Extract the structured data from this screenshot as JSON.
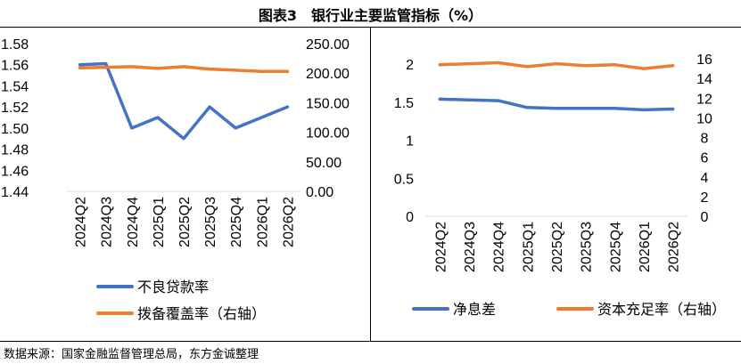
{
  "figure": {
    "title": "图表3　银行业主要监管指标（%）",
    "source": "数据来源：国家金融监督管理总局，东方金诚整理"
  },
  "colors": {
    "blue": "#4472C4",
    "orange": "#ED7D31",
    "axis": "#d9d9d9"
  },
  "chart_data": [
    {
      "type": "line",
      "categories": [
        "2024Q2",
        "2024Q3",
        "2024Q4",
        "2025Q1",
        "2025Q2",
        "2025Q3",
        "2025Q4",
        "2026Q1",
        "2026Q2"
      ],
      "ylim": [
        1.44,
        1.58
      ],
      "yticks": [
        "1.44",
        "1.46",
        "1.48",
        "1.50",
        "1.52",
        "1.54",
        "1.56",
        "1.58"
      ],
      "y2lim": [
        0,
        250
      ],
      "y2ticks": [
        "0.00",
        "50.00",
        "100.00",
        "150.00",
        "200.00",
        "250.00"
      ],
      "grid": false,
      "legend_position": "bottom",
      "series": [
        {
          "name": "不良贷款率",
          "axis": "left",
          "color": "#4472C4",
          "values": [
            1.56,
            1.561,
            1.5,
            1.51,
            1.49,
            1.52,
            1.5,
            1.51,
            1.52
          ]
        },
        {
          "name": "拨备覆盖率（右轴）",
          "axis": "right",
          "color": "#ED7D31",
          "values": [
            209,
            210,
            211,
            208,
            211,
            207,
            205,
            203,
            203
          ]
        }
      ]
    },
    {
      "type": "line",
      "categories": [
        "2024Q2",
        "2024Q3",
        "2024Q4",
        "2025Q1",
        "2025Q2",
        "2025Q3",
        "2025Q4",
        "2026Q1",
        "2026Q2"
      ],
      "ylim": [
        0,
        2.2
      ],
      "yticks": [
        "0",
        "0.5",
        "1",
        "1.5",
        "2"
      ],
      "y2lim": [
        0,
        17
      ],
      "y2ticks": [
        "0",
        "2",
        "4",
        "6",
        "8",
        "10",
        "12",
        "14",
        "16"
      ],
      "grid": false,
      "legend_position": "bottom",
      "series": [
        {
          "name": "净息差",
          "axis": "left",
          "color": "#4472C4",
          "values": [
            1.54,
            1.53,
            1.52,
            1.43,
            1.42,
            1.42,
            1.42,
            1.4,
            1.41
          ]
        },
        {
          "name": "资本充足率（右轴）",
          "axis": "right",
          "color": "#ED7D31",
          "values": [
            15.4,
            15.5,
            15.6,
            15.2,
            15.5,
            15.3,
            15.4,
            15.0,
            15.3
          ]
        }
      ]
    }
  ]
}
